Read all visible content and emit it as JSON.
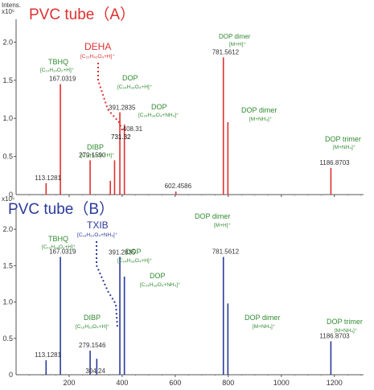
{
  "chart_data": [
    {
      "type": "mass-spectrum",
      "title": "PVC tube（A）",
      "ylabel": "Intens.\nx10⁵",
      "yticks": [
        "0.5",
        "1.0",
        "1.5",
        "2.0"
      ],
      "xticks": [
        "200",
        "400",
        "600",
        "800",
        "1000",
        "1200"
      ],
      "xlim": [
        0,
        1310
      ],
      "ylim": [
        0,
        2.3
      ],
      "color_hex": "#e03030",
      "peaks": [
        {
          "x": 113.1281,
          "y": 0.15,
          "label": "113.1281"
        },
        {
          "x": 167.0319,
          "y": 1.45,
          "label": "167.0319"
        },
        {
          "x": 279.159,
          "y": 0.45,
          "label": "279.1590"
        },
        {
          "x": 391.2835,
          "y": 1.08,
          "label": "391.2835"
        },
        {
          "x": 408.31,
          "y": 0.92,
          "label": "408.31"
        },
        {
          "x": 371.3,
          "y": 0.45,
          "label": ""
        },
        {
          "x": 355.3,
          "y": 0.18,
          "label": ""
        },
        {
          "x": 602.4586,
          "y": 0.04,
          "label": "602.4586"
        },
        {
          "x": 781.5612,
          "y": 1.8,
          "label": "781.5612"
        },
        {
          "x": 798.6,
          "y": 0.95,
          "label": ""
        },
        {
          "x": 1186.8703,
          "y": 0.35,
          "label": "1186.8703"
        }
      ],
      "compounds": [
        {
          "name": "DEHA",
          "formula": "[C₂₂H₄₂O₄+H]⁺",
          "leader_label": "731.32"
        },
        {
          "name": "TBHQ",
          "formula": "[C₁₀H₁₄O₂+H]⁺"
        },
        {
          "name": "DIBP",
          "formula": "[C₁₆H₂₂O₄+H]⁺"
        },
        {
          "name": "DOP",
          "formula": "[C₂₄H₃₈O₄+H]⁺"
        },
        {
          "name": "DOP",
          "formula": "[C₂₄H₃₈O₄+NH₄]⁺"
        },
        {
          "name": "DOP dimer",
          "formula": "[M+H]⁺"
        },
        {
          "name": "DOP dimer",
          "formula": "[M+NH₄]⁺"
        },
        {
          "name": "DOP trimer",
          "formula": "[M+NH₄]⁺"
        }
      ]
    },
    {
      "type": "mass-spectrum",
      "title": "PVC tube（B）",
      "ylabel": "x10⁵",
      "yticks": [
        "0.5",
        "1.0",
        "1.5",
        "2.0"
      ],
      "xticks": [
        "200",
        "400",
        "600",
        "800",
        "1000",
        "1200"
      ],
      "xlim": [
        0,
        1310
      ],
      "ylim": [
        0,
        2.3
      ],
      "color_hex": "#2a3a9a",
      "peaks": [
        {
          "x": 113.1281,
          "y": 0.2,
          "label": "113.1281"
        },
        {
          "x": 167.0319,
          "y": 1.62,
          "label": "167.0319"
        },
        {
          "x": 279.1546,
          "y": 0.33,
          "label": "279.1546"
        },
        {
          "x": 304.24,
          "y": 0.22,
          "label": "304.24"
        },
        {
          "x": 391.2835,
          "y": 1.62,
          "label": "391.2835"
        },
        {
          "x": 408.3,
          "y": 1.35,
          "label": ""
        },
        {
          "x": 781.5612,
          "y": 1.62,
          "label": "781.5612"
        },
        {
          "x": 798.6,
          "y": 0.98,
          "label": ""
        },
        {
          "x": 1186.8703,
          "y": 0.46,
          "label": "1186.8703"
        }
      ],
      "compounds": [
        {
          "name": "TXIB",
          "formula": "[C₁₆H₃₀O₄+NH₄]⁺"
        },
        {
          "name": "TBHQ",
          "formula": "[C₁₀H₁₄O₂+H]⁺"
        },
        {
          "name": "DIBP",
          "formula": "[C₁₆H₂₂O₄+H]⁺"
        },
        {
          "name": "DOP",
          "formula": "[C₂₄H₃₈O₄+H]⁺"
        },
        {
          "name": "DOP",
          "formula": "[C₂₄H₃₈O₄+NH₄]⁺"
        },
        {
          "name": "DOP dimer",
          "formula": "[M+H]⁺"
        },
        {
          "name": "DOP dimer",
          "formula": "[M+NH₄]⁺"
        },
        {
          "name": "DOP trimer",
          "formula": "[M+NH₄]⁺"
        }
      ]
    }
  ],
  "colors": {
    "green": "#2f8a2f",
    "axis": "#555555"
  }
}
